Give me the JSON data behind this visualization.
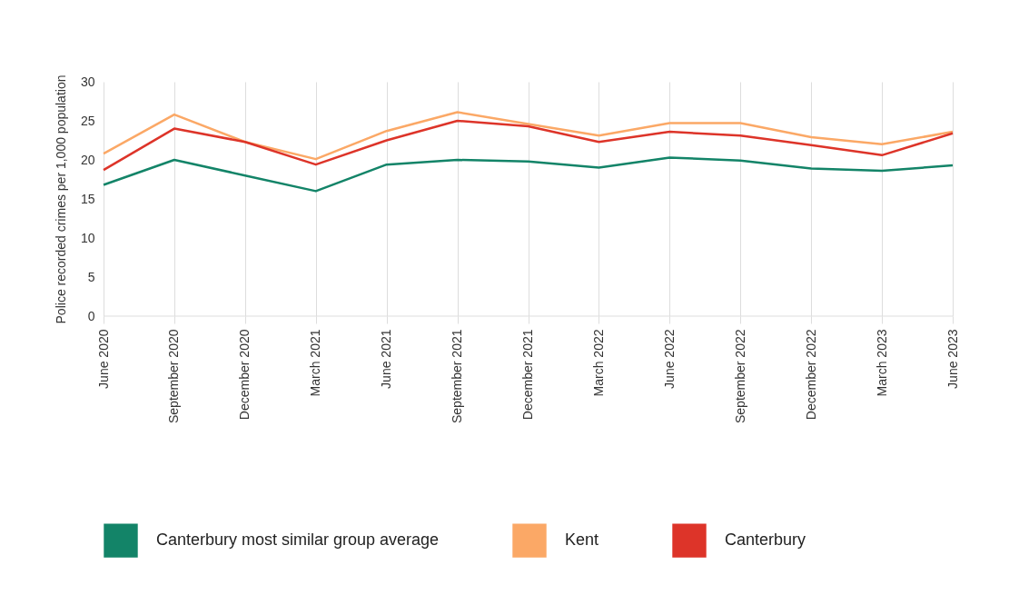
{
  "chart_data": {
    "type": "line",
    "ylabel": "Police recorded crimes per 1,000 population",
    "categories": [
      "June 2020",
      "September 2020",
      "December 2020",
      "March 2021",
      "June 2021",
      "September 2021",
      "December 2021",
      "March 2022",
      "June 2022",
      "September 2022",
      "December 2022",
      "March 2023",
      "June 2023"
    ],
    "series": [
      {
        "name": "Canterbury most similar group average",
        "color": "#138468",
        "values": [
          16.8,
          20,
          18,
          16,
          19.4,
          20,
          19.8,
          19,
          20.3,
          19.9,
          18.9,
          18.6,
          19.3
        ]
      },
      {
        "name": "Kent",
        "color": "#fba866",
        "values": [
          20.8,
          25.8,
          22.3,
          20.1,
          23.7,
          26.1,
          24.6,
          23.1,
          24.7,
          24.7,
          22.9,
          22,
          23.6
        ]
      },
      {
        "name": "Canterbury",
        "color": "#dd3429",
        "values": [
          18.7,
          24,
          22.3,
          19.4,
          22.5,
          25,
          24.3,
          22.3,
          23.6,
          23.1,
          21.9,
          20.6,
          23.4
        ]
      }
    ],
    "ylim": [
      0,
      30
    ],
    "yticks": [
      0,
      5,
      10,
      15,
      20,
      25,
      30
    ],
    "grid": "x",
    "legend": "bottom"
  }
}
